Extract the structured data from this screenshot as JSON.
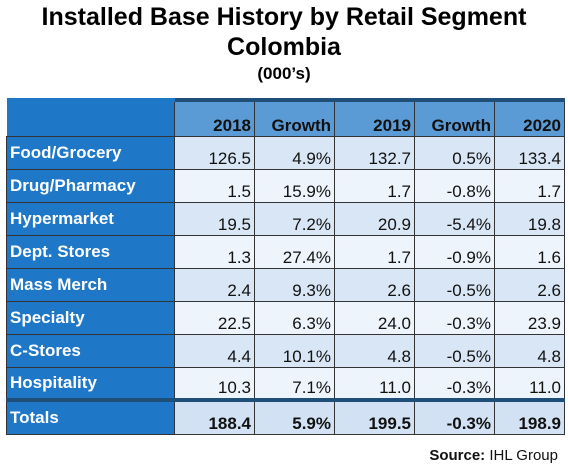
{
  "title": {
    "line1": "Installed Base History by Retail Segment",
    "line2": "Colombia",
    "units": "(000’s)"
  },
  "table": {
    "headers": [
      "2018",
      "Growth",
      "2019",
      "Growth",
      "2020"
    ],
    "rows": [
      {
        "label": "Food/Grocery",
        "values": [
          "126.5",
          "4.9%",
          "132.7",
          "0.5%",
          "133.4"
        ]
      },
      {
        "label": "Drug/Pharmacy",
        "values": [
          "1.5",
          "15.9%",
          "1.7",
          "-0.8%",
          "1.7"
        ]
      },
      {
        "label": "Hypermarket",
        "values": [
          "19.5",
          "7.2%",
          "20.9",
          "-5.4%",
          "19.8"
        ]
      },
      {
        "label": "Dept. Stores",
        "values": [
          "1.3",
          "27.4%",
          "1.7",
          "-0.9%",
          "1.6"
        ]
      },
      {
        "label": "Mass Merch",
        "values": [
          "2.4",
          "9.3%",
          "2.6",
          "-0.5%",
          "2.6"
        ]
      },
      {
        "label": "Specialty",
        "values": [
          "22.5",
          "6.3%",
          "24.0",
          "-0.3%",
          "23.9"
        ]
      },
      {
        "label": "C-Stores",
        "values": [
          "4.4",
          "10.1%",
          "4.8",
          "-0.5%",
          "4.8"
        ]
      },
      {
        "label": "Hospitality",
        "values": [
          "10.3",
          "7.1%",
          "11.0",
          "-0.3%",
          "11.0"
        ]
      }
    ],
    "totals": {
      "label": "Totals",
      "values": [
        "188.4",
        "5.9%",
        "199.5",
        "-0.3%",
        "198.9"
      ]
    }
  },
  "source": {
    "prefix": "Source:",
    "name": "IHL Group"
  },
  "colors": {
    "label_bg": "#1f77c8",
    "header_bg": "#5b9bd5",
    "rule": "#1f4e79"
  }
}
